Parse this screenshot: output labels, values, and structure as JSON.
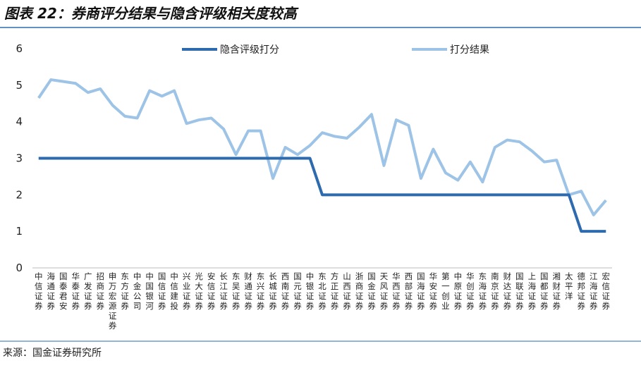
{
  "chart_data": {
    "type": "line",
    "title": "图表 22：券商评分结果与隐含评级相关度较高",
    "source": "来源：国金证券研究所",
    "categories": [
      "中信证券",
      "海通证券",
      "国泰君安",
      "华泰证券",
      "广发证券",
      "招商证券",
      "申万宏源证券",
      "东方证券",
      "中金公司",
      "中国银河",
      "国信证券",
      "中信建投",
      "兴业证券",
      "光大证券",
      "安信证券",
      "长江证券",
      "东吴证券",
      "财通证券",
      "东兴证券",
      "长城证券",
      "西南证券",
      "国元证券",
      "中银证券",
      "东北证券",
      "方正证券",
      "山西证券",
      "浙商证券",
      "国金证券",
      "天风证券",
      "华西证券",
      "西部证券",
      "国海证券",
      "华安证券",
      "第一创业",
      "中原证券",
      "华创证券",
      "东海证券",
      "南京证券",
      "财达证券",
      "国联证券",
      "上海证券",
      "国都证券",
      "湘财证券",
      "太平洋",
      "德邦证券",
      "江海证券",
      "宏信证券"
    ],
    "series": [
      {
        "name": "隐含评级打分",
        "color": "#2e6bae",
        "values": [
          3,
          3,
          3,
          3,
          3,
          3,
          3,
          3,
          3,
          3,
          3,
          3,
          3,
          3,
          3,
          3,
          3,
          3,
          3,
          3,
          3,
          3,
          3,
          2,
          2,
          2,
          2,
          2,
          2,
          2,
          2,
          2,
          2,
          2,
          2,
          2,
          2,
          2,
          2,
          2,
          2,
          2,
          2,
          2,
          1,
          1,
          1
        ]
      },
      {
        "name": "打分结果",
        "color": "#9dc3e6",
        "values": [
          4.65,
          5.15,
          5.1,
          5.05,
          4.8,
          4.9,
          4.45,
          4.15,
          4.1,
          4.85,
          4.7,
          4.85,
          3.95,
          4.05,
          4.1,
          3.8,
          3.1,
          3.75,
          3.75,
          2.45,
          3.3,
          3.1,
          3.35,
          3.7,
          3.6,
          3.55,
          3.85,
          4.2,
          2.8,
          4.05,
          3.9,
          2.45,
          3.25,
          2.6,
          2.4,
          2.9,
          2.35,
          3.3,
          3.5,
          3.45,
          3.2,
          2.9,
          2.95,
          2.0,
          2.1,
          1.45,
          1.85
        ]
      }
    ],
    "ylim": [
      0,
      6
    ],
    "yticks": [
      0,
      1,
      2,
      3,
      4,
      5,
      6
    ]
  }
}
